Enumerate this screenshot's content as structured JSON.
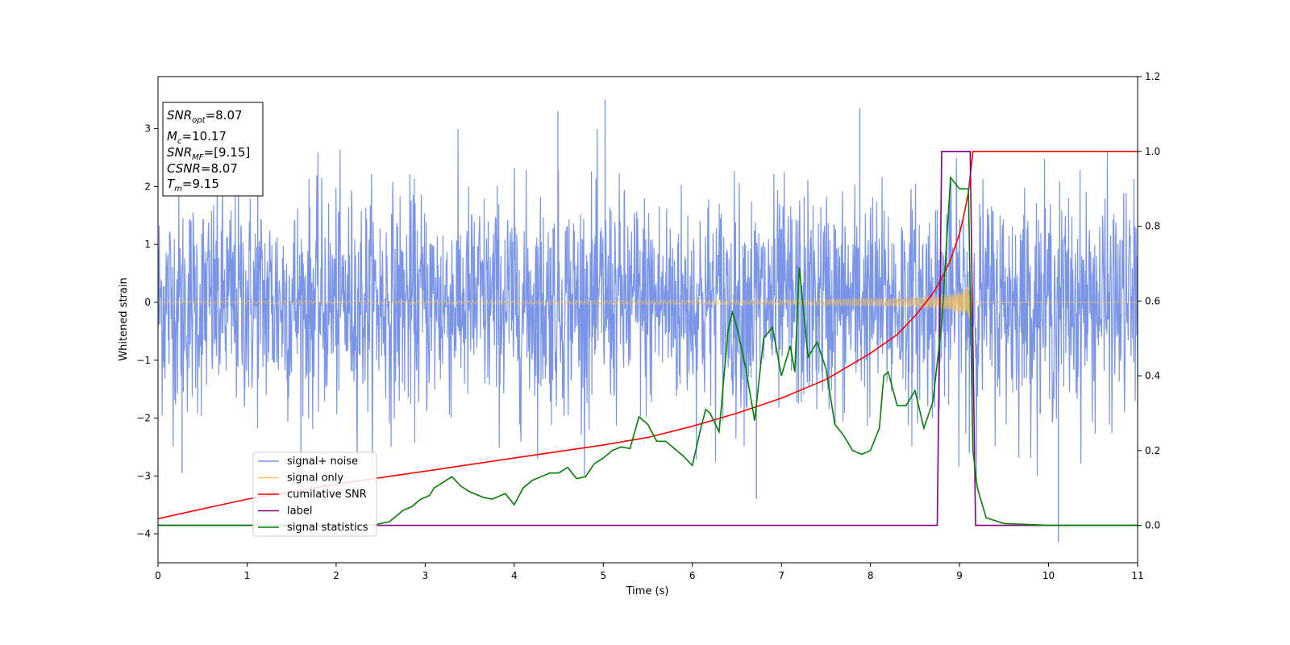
{
  "chart_data": {
    "type": "line",
    "xlabel": "Time (s)",
    "ylabel": "Whitened strain",
    "xlim": [
      0,
      11
    ],
    "ylim": [
      -4.5,
      3.9
    ],
    "y2lim": [
      -0.1,
      1.2
    ],
    "xticks": [
      "0",
      "1",
      "2",
      "3",
      "4",
      "5",
      "6",
      "7",
      "8",
      "9",
      "10",
      "11"
    ],
    "yticks": [
      "3",
      "2",
      "1",
      "0",
      "−1",
      "−2",
      "−3",
      "−4"
    ],
    "y2ticks": [
      "1.2",
      "1.0",
      "0.8",
      "0.6",
      "0.4",
      "0.2",
      "0.0"
    ],
    "annotation": {
      "snr_opt": "=8.07",
      "mc": "=10.17",
      "snr_mf": "=[9.15]",
      "csnr": "=8.07",
      "tm": "=9.15"
    },
    "legend": {
      "position": "lower-left",
      "entries": [
        "signal+ noise",
        "signal only",
        "cumilative SNR",
        "label",
        "signal statistics"
      ]
    },
    "series": [
      {
        "name": "signal+ noise",
        "axis": "left",
        "color": "#7a95e8",
        "kind": "noise",
        "std": 0.95,
        "x_range": [
          0,
          11
        ],
        "peaks": [
          [
            5.02,
            3.5
          ],
          [
            4.49,
            3.3
          ],
          [
            10.11,
            -4.15
          ],
          [
            6.72,
            -3.4
          ],
          [
            7.88,
            3.35
          ],
          [
            1.12,
            3.2
          ],
          [
            0.27,
            -2.95
          ],
          [
            9.11,
            -2.6
          ]
        ]
      },
      {
        "name": "signal only",
        "axis": "left",
        "color": "#f5c25a",
        "kind": "chirp",
        "merger_time": 9.15,
        "amplitude_at_start": 0.02,
        "amplitude_near_merger": 0.6
      },
      {
        "name": "cumilative SNR",
        "axis": "right",
        "color": "#ff0000",
        "x": [
          0,
          1,
          2,
          3,
          4,
          5,
          5.5,
          6,
          6.5,
          7,
          7.5,
          8,
          8.3,
          8.5,
          8.7,
          8.8,
          8.9,
          9.0,
          9.05,
          9.1,
          9.15,
          11
        ],
        "values": [
          0.018,
          0.07,
          0.11,
          0.145,
          0.18,
          0.215,
          0.235,
          0.265,
          0.3,
          0.34,
          0.39,
          0.46,
          0.51,
          0.56,
          0.62,
          0.66,
          0.71,
          0.78,
          0.83,
          0.89,
          1.0,
          1.0
        ]
      },
      {
        "name": "label",
        "axis": "right",
        "color": "#800080",
        "x": [
          0,
          8.75,
          8.8,
          9.12,
          9.18,
          11
        ],
        "values": [
          0,
          0,
          1.0,
          1.0,
          0,
          0
        ]
      },
      {
        "name": "signal statistics",
        "axis": "right",
        "color": "#008000",
        "x": [
          0,
          2.4,
          2.6,
          2.75,
          2.85,
          2.95,
          3.05,
          3.1,
          3.2,
          3.3,
          3.4,
          3.5,
          3.6,
          3.65,
          3.75,
          3.9,
          4.0,
          4.1,
          4.2,
          4.3,
          4.4,
          4.5,
          4.6,
          4.7,
          4.8,
          4.9,
          5.0,
          5.1,
          5.2,
          5.3,
          5.4,
          5.5,
          5.6,
          5.7,
          5.8,
          5.9,
          6.0,
          6.1,
          6.15,
          6.2,
          6.3,
          6.4,
          6.45,
          6.5,
          6.6,
          6.7,
          6.8,
          6.9,
          7.0,
          7.1,
          7.15,
          7.2,
          7.3,
          7.4,
          7.5,
          7.6,
          7.7,
          7.8,
          7.9,
          8.0,
          8.1,
          8.15,
          8.2,
          8.3,
          8.4,
          8.5,
          8.6,
          8.7,
          8.8,
          8.9,
          9.0,
          9.1,
          9.15,
          9.2,
          9.3,
          9.5,
          10,
          11
        ],
        "values": [
          0,
          0,
          0.01,
          0.04,
          0.05,
          0.07,
          0.08,
          0.1,
          0.115,
          0.13,
          0.105,
          0.09,
          0.08,
          0.075,
          0.07,
          0.085,
          0.055,
          0.1,
          0.12,
          0.13,
          0.14,
          0.14,
          0.155,
          0.125,
          0.13,
          0.165,
          0.18,
          0.2,
          0.21,
          0.205,
          0.29,
          0.27,
          0.225,
          0.225,
          0.205,
          0.185,
          0.16,
          0.265,
          0.31,
          0.3,
          0.25,
          0.52,
          0.57,
          0.53,
          0.42,
          0.28,
          0.5,
          0.53,
          0.4,
          0.48,
          0.41,
          0.69,
          0.45,
          0.49,
          0.42,
          0.27,
          0.24,
          0.2,
          0.19,
          0.2,
          0.26,
          0.4,
          0.41,
          0.32,
          0.32,
          0.36,
          0.26,
          0.33,
          0.54,
          0.93,
          0.9,
          0.9,
          0.2,
          0.1,
          0.02,
          0.005,
          0,
          0
        ]
      }
    ]
  }
}
